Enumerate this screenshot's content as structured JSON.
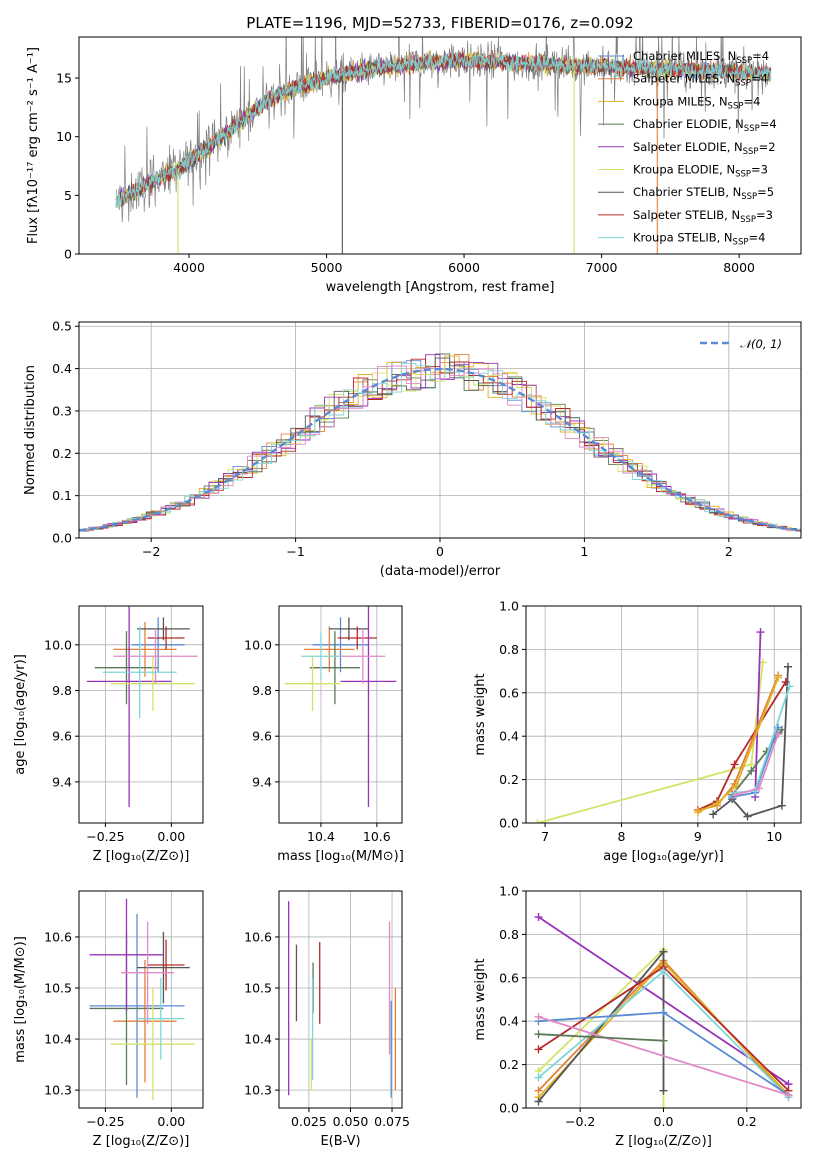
{
  "title": "PLATE=1196, MJD=52733, FIBERID=0176, z=0.092",
  "colors": {
    "Chabrier MILES": "#5b8ad4",
    "Salpeter MILES": "#e3813a",
    "Kroupa MILES": "#e0b21f",
    "Chabrier ELODIE": "#5d7a58",
    "Salpeter ELODIE": "#9a33b8",
    "Kroupa ELODIE": "#d4e366",
    "Chabrier STELIB": "#555555",
    "Salpeter STELIB": "#b52a2a",
    "Kroupa STELIB": "#7fd6d8",
    "Pink": "#e08ac7",
    "Data": "#808080"
  },
  "chart_data": [
    {
      "id": "spectrum",
      "type": "line",
      "title": "PLATE=1196, MJD=52733, FIBERID=0176, z=0.092",
      "xlabel": "wavelength [Angstrom, rest frame]",
      "ylabel": "Flux [fλ10⁻¹⁷ erg cm⁻² s⁻¹ A⁻¹]",
      "xlim": [
        3200,
        8450
      ],
      "ylim": [
        0,
        18.5
      ],
      "xticks": [
        "4000",
        "5000",
        "6000",
        "7000",
        "8000"
      ],
      "yticks": [
        "0",
        "5",
        "10",
        "15"
      ],
      "legend_position": "top-right",
      "envelope_x": [
        3470,
        3550,
        3650,
        3750,
        3850,
        3950,
        4050,
        4150,
        4300,
        4450,
        4600,
        4800,
        5000,
        5200,
        5400,
        5600,
        5800,
        6000,
        6200,
        6400,
        6600,
        6800,
        7000,
        7200,
        7400,
        7600,
        7800,
        8000,
        8200
      ],
      "envelope_y": [
        4.5,
        5.0,
        5.6,
        6.3,
        6.9,
        7.5,
        8.3,
        9.2,
        10.6,
        12.0,
        13.3,
        14.3,
        15.0,
        15.5,
        15.9,
        16.2,
        16.4,
        16.5,
        16.4,
        16.3,
        16.2,
        16.1,
        16.0,
        15.9,
        15.8,
        15.7,
        15.6,
        15.5,
        15.4
      ],
      "series": [
        {
          "name": "Chabrier MILES, N$_{SSP}$=4",
          "legend_main": "Chabrier MILES, N",
          "legend_sub": "SSP",
          "legend_end": "=4",
          "color_key": "Chabrier MILES"
        },
        {
          "name": "Salpeter MILES, N$_{SSP}$=4",
          "legend_main": "Salpeter MILES, N",
          "legend_sub": "SSP",
          "legend_end": "=4",
          "color_key": "Salpeter MILES"
        },
        {
          "name": "Kroupa MILES, N$_{SSP}$=4",
          "legend_main": "Kroupa MILES, N",
          "legend_sub": "SSP",
          "legend_end": "=4",
          "color_key": "Kroupa MILES"
        },
        {
          "name": "Chabrier ELODIE, N$_{SSP}$=4",
          "legend_main": "Chabrier ELODIE, N",
          "legend_sub": "SSP",
          "legend_end": "=4",
          "color_key": "Chabrier ELODIE"
        },
        {
          "name": "Salpeter ELODIE, N$_{SSP}$=2",
          "legend_main": "Salpeter ELODIE, N",
          "legend_sub": "SSP",
          "legend_end": "=2",
          "color_key": "Salpeter ELODIE"
        },
        {
          "name": "Kroupa ELODIE, N$_{SSP}$=3",
          "legend_main": "Kroupa ELODIE, N",
          "legend_sub": "SSP",
          "legend_end": "=3",
          "color_key": "Kroupa ELODIE"
        },
        {
          "name": "Chabrier STELIB, N$_{SSP}$=5",
          "legend_main": "Chabrier STELIB, N",
          "legend_sub": "SSP",
          "legend_end": "=5",
          "color_key": "Chabrier STELIB"
        },
        {
          "name": "Salpeter STELIB, N$_{SSP}$=3",
          "legend_main": "Salpeter STELIB, N",
          "legend_sub": "SSP",
          "legend_end": "=3",
          "color_key": "Salpeter STELIB"
        },
        {
          "name": "Kroupa STELIB, N$_{SSP}$=4",
          "legend_main": "Kroupa STELIB, N",
          "legend_sub": "SSP",
          "legend_end": "=4",
          "color_key": "Kroupa STELIB"
        }
      ],
      "model_vertical_drops": [
        {
          "x": 3920,
          "color_key": "Kroupa ELODIE"
        },
        {
          "x": 5115,
          "color_key": "Chabrier STELIB"
        },
        {
          "x": 6800,
          "color_key": "Kroupa ELODIE"
        },
        {
          "x": 7405,
          "color_key": "Salpeter MILES"
        }
      ]
    },
    {
      "id": "residuals",
      "type": "line",
      "xlabel": "(data-model)/error",
      "ylabel": "Normed distribution",
      "xlim": [
        -2.5,
        2.5
      ],
      "ylim": [
        0,
        0.51
      ],
      "xticks": [
        "−2",
        "−1",
        "0",
        "1",
        "2"
      ],
      "xtick_values": [
        -2,
        -1,
        0,
        1,
        2
      ],
      "yticks": [
        "0.0",
        "0.1",
        "0.2",
        "0.3",
        "0.4",
        "0.5"
      ],
      "ytick_values": [
        0,
        0.1,
        0.2,
        0.3,
        0.4,
        0.5
      ],
      "legend_position": "top-right",
      "reference": {
        "name": "𝒩(0, 1)",
        "color": "#5b8ad4",
        "style": "dashed"
      },
      "bin_width": 0.1
    },
    {
      "id": "age-vs-Z",
      "type": "scatter",
      "xlabel": "Z [log₁₀(Z/Z⊙)]",
      "ylabel": "age  [log₁₀(age/yr)]",
      "xlim": [
        -0.35,
        0.12
      ],
      "ylim": [
        9.22,
        10.17
      ],
      "xticks": [
        "−0.25",
        "0.00"
      ],
      "xtick_values": [
        -0.25,
        0.0
      ],
      "yticks": [
        "9.4",
        "9.6",
        "9.8",
        "10.0"
      ],
      "ytick_values": [
        9.4,
        9.6,
        9.8,
        10.0
      ],
      "points": [
        {
          "x": -0.05,
          "xerr": 0.1,
          "y": 10.0,
          "yerr": 0.12,
          "color_key": "Chabrier MILES"
        },
        {
          "x": -0.1,
          "xerr": 0.12,
          "y": 9.98,
          "yerr": 0.12,
          "color_key": "Salpeter MILES"
        },
        {
          "x": -0.03,
          "xerr": 0.1,
          "y": 10.07,
          "yerr": 0.05,
          "color_key": "Chabrier STELIB"
        },
        {
          "x": -0.02,
          "xerr": 0.07,
          "y": 10.03,
          "yerr": 0.05,
          "color_key": "Salpeter STELIB"
        },
        {
          "x": -0.17,
          "xerr": 0.12,
          "y": 9.9,
          "yerr": 0.16,
          "color_key": "Chabrier ELODIE"
        },
        {
          "x": -0.16,
          "xerr": 0.16,
          "y": 9.84,
          "yerr": 0.55,
          "color_key": "Salpeter ELODIE"
        },
        {
          "x": -0.07,
          "xerr": 0.16,
          "y": 9.83,
          "yerr": 0.12,
          "color_key": "Kroupa ELODIE"
        },
        {
          "x": -0.06,
          "xerr": 0.16,
          "y": 9.95,
          "yerr": 0.12,
          "color_key": "Pink"
        },
        {
          "x": -0.12,
          "xerr": 0.14,
          "y": 9.88,
          "yerr": 0.2,
          "color_key": "Kroupa STELIB"
        }
      ]
    },
    {
      "id": "age-vs-mass",
      "type": "scatter",
      "xlabel": "mass [log₁₀(M/M⊙)]",
      "xlim": [
        10.25,
        10.69
      ],
      "ylim": [
        9.22,
        10.17
      ],
      "xticks": [
        "10.4",
        "10.6"
      ],
      "xtick_values": [
        10.4,
        10.6
      ],
      "yticks": [
        "9.4",
        "9.6",
        "9.8",
        "10.0"
      ],
      "ytick_values": [
        9.4,
        9.6,
        9.8,
        10.0
      ],
      "points": [
        {
          "x": 10.47,
          "xerr": 0.1,
          "y": 10.0,
          "yerr": 0.12,
          "color_key": "Chabrier MILES"
        },
        {
          "x": 10.43,
          "xerr": 0.09,
          "y": 9.98,
          "yerr": 0.1,
          "color_key": "Salpeter MILES"
        },
        {
          "x": 10.5,
          "xerr": 0.07,
          "y": 10.07,
          "yerr": 0.05,
          "color_key": "Chabrier STELIB"
        },
        {
          "x": 10.53,
          "xerr": 0.07,
          "y": 10.03,
          "yerr": 0.05,
          "color_key": "Salpeter STELIB"
        },
        {
          "x": 10.45,
          "xerr": 0.09,
          "y": 9.9,
          "yerr": 0.16,
          "color_key": "Chabrier ELODIE"
        },
        {
          "x": 10.57,
          "xerr": 0.1,
          "y": 9.84,
          "yerr": 0.55,
          "color_key": "Salpeter ELODIE"
        },
        {
          "x": 10.37,
          "xerr": 0.1,
          "y": 9.83,
          "yerr": 0.12,
          "color_key": "Kroupa ELODIE"
        },
        {
          "x": 10.55,
          "xerr": 0.08,
          "y": 9.95,
          "yerr": 0.12,
          "color_key": "Pink"
        },
        {
          "x": 10.4,
          "xerr": 0.07,
          "y": 9.95,
          "yerr": 0.1,
          "color_key": "Kroupa STELIB"
        }
      ]
    },
    {
      "id": "mass-weight-vs-age",
      "type": "line",
      "xlabel": "age  [log₁₀(age/yr)]",
      "ylabel": "mass weight",
      "xlim": [
        6.75,
        10.35
      ],
      "ylim": [
        0,
        1
      ],
      "xticks": [
        "7",
        "8",
        "9",
        "10"
      ],
      "xtick_values": [
        7,
        8,
        9,
        10
      ],
      "yticks": [
        "0.0",
        "0.2",
        "0.4",
        "0.6",
        "0.8",
        "1.0"
      ],
      "ytick_values": [
        0,
        0.2,
        0.4,
        0.6,
        0.8,
        1.0
      ],
      "series": [
        {
          "color_key": "Kroupa ELODIE",
          "x": [
            6.9,
            9.7,
            9.85
          ],
          "y": [
            0.0,
            0.27,
            0.74
          ]
        },
        {
          "color_key": "Salpeter ELODIE",
          "x": [
            9.75,
            9.82
          ],
          "y": [
            0.12,
            0.88
          ]
        },
        {
          "color_key": "Salpeter STELIB",
          "x": [
            9.0,
            9.25,
            9.48,
            10.15
          ],
          "y": [
            0.06,
            0.1,
            0.27,
            0.65
          ]
        },
        {
          "color_key": "Salpeter MILES",
          "x": [
            9.0,
            9.25,
            9.48,
            10.05
          ],
          "y": [
            0.06,
            0.08,
            0.18,
            0.68
          ]
        },
        {
          "color_key": "Kroupa MILES",
          "x": [
            9.0,
            9.25,
            9.5,
            10.05
          ],
          "y": [
            0.05,
            0.09,
            0.17,
            0.67
          ]
        },
        {
          "color_key": "Chabrier STELIB",
          "x": [
            9.2,
            9.45,
            9.65,
            10.1,
            10.18
          ],
          "y": [
            0.04,
            0.11,
            0.03,
            0.08,
            0.72
          ]
        },
        {
          "color_key": "Chabrier ELODIE",
          "x": [
            9.45,
            9.7,
            9.9,
            10.1
          ],
          "y": [
            0.13,
            0.24,
            0.33,
            0.43
          ]
        },
        {
          "color_key": "Chabrier MILES",
          "x": [
            9.45,
            9.75,
            10.05
          ],
          "y": [
            0.12,
            0.14,
            0.44
          ]
        },
        {
          "color_key": "Kroupa STELIB",
          "x": [
            9.5,
            9.75,
            10.2
          ],
          "y": [
            0.14,
            0.15,
            0.63
          ]
        },
        {
          "color_key": "Pink",
          "x": [
            9.5,
            9.8,
            10.05
          ],
          "y": [
            0.13,
            0.16,
            0.41
          ]
        }
      ]
    },
    {
      "id": "mass-vs-Z",
      "type": "scatter",
      "xlabel": "Z [log₁₀(Z/Z⊙)]",
      "ylabel": "mass [log₁₀(M/M⊙)]",
      "xlim": [
        -0.35,
        0.12
      ],
      "ylim": [
        10.265,
        10.69
      ],
      "xticks": [
        "−0.25",
        "0.00"
      ],
      "xtick_values": [
        -0.25,
        0.0
      ],
      "yticks": [
        "10.3",
        "10.4",
        "10.5",
        "10.6"
      ],
      "ytick_values": [
        10.3,
        10.4,
        10.5,
        10.6
      ],
      "points": [
        {
          "x": -0.13,
          "xerr": 0.18,
          "y": 10.465,
          "yerr": 0.18,
          "color_key": "Chabrier MILES"
        },
        {
          "x": -0.1,
          "xerr": 0.12,
          "y": 10.435,
          "yerr": 0.12,
          "color_key": "Salpeter MILES"
        },
        {
          "x": -0.03,
          "xerr": 0.1,
          "y": 10.54,
          "yerr": 0.07,
          "color_key": "Chabrier STELIB"
        },
        {
          "x": -0.02,
          "xerr": 0.07,
          "y": 10.545,
          "yerr": 0.05,
          "color_key": "Salpeter STELIB"
        },
        {
          "x": -0.17,
          "xerr": 0.14,
          "y": 10.46,
          "yerr": 0.15,
          "color_key": "Chabrier ELODIE"
        },
        {
          "x": -0.17,
          "xerr": 0.14,
          "y": 10.565,
          "yerr": 0.11,
          "color_key": "Salpeter ELODIE"
        },
        {
          "x": -0.07,
          "xerr": 0.16,
          "y": 10.39,
          "yerr": 0.11,
          "color_key": "Kroupa ELODIE"
        },
        {
          "x": -0.09,
          "xerr": 0.1,
          "y": 10.53,
          "yerr": 0.1,
          "color_key": "Pink"
        },
        {
          "x": -0.04,
          "xerr": 0.09,
          "y": 10.44,
          "yerr": 0.08,
          "color_key": "Kroupa STELIB"
        }
      ]
    },
    {
      "id": "mass-vs-EBV",
      "type": "scatter",
      "xlabel": "E(B-V)",
      "xlim": [
        0.007,
        0.081
      ],
      "ylim": [
        10.265,
        10.69
      ],
      "xticks": [
        "0.025",
        "0.050",
        "0.075"
      ],
      "xtick_values": [
        0.025,
        0.05,
        0.075
      ],
      "yticks": [
        "10.3",
        "10.4",
        "10.5",
        "10.6"
      ],
      "ytick_values": [
        10.3,
        10.4,
        10.5,
        10.6
      ],
      "points": [
        {
          "x": 0.0128,
          "y": 10.48,
          "yerr": 0.19,
          "color_key": "Salpeter ELODIE"
        },
        {
          "x": 0.0175,
          "y": 10.51,
          "yerr": 0.075,
          "color_key": "Chabrier STELIB"
        },
        {
          "x": 0.0275,
          "y": 10.5,
          "yerr": 0.05,
          "color_key": "Chabrier ELODIE"
        },
        {
          "x": 0.0265,
          "y": 10.35,
          "yerr": 0.05,
          "color_key": "Kroupa ELODIE"
        },
        {
          "x": 0.0272,
          "y": 10.42,
          "yerr": 0.1,
          "color_key": "Kroupa STELIB"
        },
        {
          "x": 0.0315,
          "y": 10.51,
          "yerr": 0.08,
          "color_key": "Salpeter STELIB"
        },
        {
          "x": 0.0735,
          "y": 10.5,
          "yerr": 0.13,
          "color_key": "Pink"
        },
        {
          "x": 0.0745,
          "y": 10.38,
          "yerr": 0.095,
          "color_key": "Chabrier MILES"
        },
        {
          "x": 0.077,
          "y": 10.4,
          "yerr": 0.1,
          "color_key": "Salpeter MILES"
        }
      ]
    },
    {
      "id": "mass-weight-vs-Z",
      "type": "line",
      "xlabel": "Z [log₁₀(Z/Z⊙)]",
      "ylabel": "mass weight",
      "xlim": [
        -0.33,
        0.33
      ],
      "ylim": [
        0,
        1
      ],
      "xticks": [
        "−0.2",
        "0.0",
        "0.2"
      ],
      "xtick_values": [
        -0.2,
        0.0,
        0.2
      ],
      "yticks": [
        "0.0",
        "0.2",
        "0.4",
        "0.6",
        "0.8",
        "1.0"
      ],
      "ytick_values": [
        0,
        0.2,
        0.4,
        0.6,
        0.8,
        1.0
      ],
      "series": [
        {
          "color_key": "Salpeter ELODIE",
          "x": [
            -0.3,
            0.3
          ],
          "y": [
            0.88,
            0.11
          ]
        },
        {
          "color_key": "Kroupa ELODIE",
          "x": [
            -0.3,
            0.0,
            0.0
          ],
          "y": [
            0.17,
            0.73,
            0.0
          ]
        },
        {
          "color_key": "Salpeter MILES",
          "x": [
            -0.3,
            0.0,
            0.3
          ],
          "y": [
            0.08,
            0.68,
            0.05
          ]
        },
        {
          "color_key": "Kroupa MILES",
          "x": [
            -0.3,
            0.0,
            0.3
          ],
          "y": [
            0.05,
            0.67,
            0.06
          ]
        },
        {
          "color_key": "Chabrier STELIB",
          "x": [
            -0.3,
            0.0,
            0.0
          ],
          "y": [
            0.03,
            0.72,
            0.08
          ]
        },
        {
          "color_key": "Salpeter STELIB",
          "x": [
            -0.3,
            0.0,
            0.3
          ],
          "y": [
            0.27,
            0.65,
            0.08
          ]
        },
        {
          "color_key": "Kroupa STELIB",
          "x": [
            -0.3,
            0.0,
            0.3
          ],
          "y": [
            0.14,
            0.63,
            0.05
          ]
        },
        {
          "color_key": "Chabrier MILES",
          "x": [
            -0.3,
            0.0,
            0.3
          ],
          "y": [
            0.4,
            0.44,
            0.06
          ]
        },
        {
          "color_key": "Pink",
          "x": [
            -0.3,
            0.3
          ],
          "y": [
            0.42,
            0.06
          ]
        },
        {
          "color_key": "Chabrier ELODIE",
          "x": [
            -0.3,
            0.0
          ],
          "y": [
            0.34,
            0.31
          ]
        }
      ]
    }
  ]
}
